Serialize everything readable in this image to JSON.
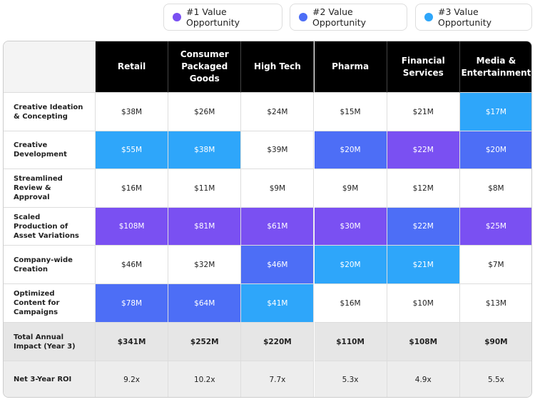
{
  "legend": [
    {
      "label": "#1 Value Opportunity",
      "color": "#7a50f2"
    },
    {
      "label": "#2 Value Opportunity",
      "color": "#4d6ef6"
    },
    {
      "label": "#3 Value Opportunity",
      "color": "#2ea6fa"
    }
  ],
  "table": {
    "columns": [
      "Retail",
      "Consumer Packaged Goods",
      "High Tech",
      "Pharma",
      "Financial Services",
      "Media & Entertainment"
    ],
    "rows": [
      {
        "label": "Creative Ideation & Concepting",
        "cells": [
          "$38M",
          "$26M",
          "$24M",
          "$15M",
          "$21M",
          "$17M"
        ],
        "highlight": [
          null,
          null,
          null,
          null,
          null,
          3
        ]
      },
      {
        "label": "Creative Development",
        "cells": [
          "$55M",
          "$38M",
          "$39M",
          "$20M",
          "$22M",
          "$20M"
        ],
        "highlight": [
          3,
          3,
          null,
          2,
          1,
          2
        ]
      },
      {
        "label": "Streamlined Review & Approval",
        "cells": [
          "$16M",
          "$11M",
          "$9M",
          "$9M",
          "$12M",
          "$8M"
        ],
        "highlight": [
          null,
          null,
          null,
          null,
          null,
          null
        ]
      },
      {
        "label": "Scaled Production of Asset Variations",
        "cells": [
          "$108M",
          "$81M",
          "$61M",
          "$30M",
          "$22M",
          "$25M"
        ],
        "highlight": [
          1,
          1,
          1,
          1,
          2,
          1
        ]
      },
      {
        "label": "Company-wide Creation",
        "cells": [
          "$46M",
          "$32M",
          "$46M",
          "$20M",
          "$21M",
          "$7M"
        ],
        "highlight": [
          null,
          null,
          2,
          3,
          3,
          null
        ]
      },
      {
        "label": "Optimized Content for Campaigns",
        "cells": [
          "$78M",
          "$64M",
          "$41M",
          "$16M",
          "$10M",
          "$13M"
        ],
        "highlight": [
          2,
          2,
          3,
          null,
          null,
          null
        ]
      }
    ],
    "summary_rows": [
      {
        "label": "Total Annual Impact (Year 3)",
        "cells": [
          "$341M",
          "$252M",
          "$220M",
          "$110M",
          "$108M",
          "$90M"
        ]
      },
      {
        "label": "Net 3-Year ROI",
        "cells": [
          "9.2x",
          "10.2x",
          "7.7x",
          "5.3x",
          "4.9x",
          "5.5x"
        ]
      }
    ]
  }
}
